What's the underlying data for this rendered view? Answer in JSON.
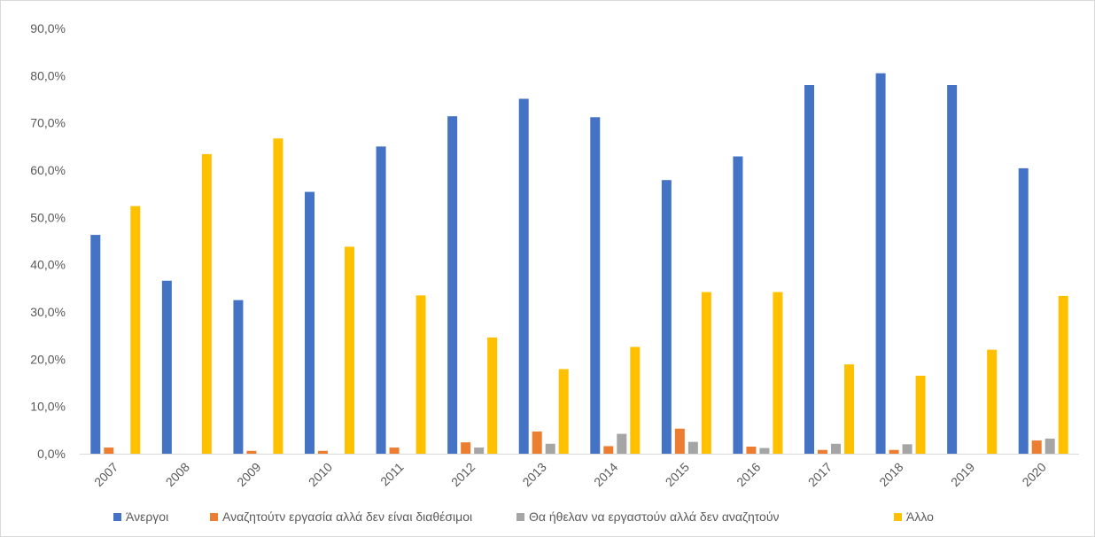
{
  "chart_data": {
    "type": "bar",
    "title": "",
    "xlabel": "",
    "ylabel": "",
    "ylim": [
      0,
      90
    ],
    "y_ticks": [
      "0,0%",
      "10,0%",
      "20,0%",
      "30,0%",
      "40,0%",
      "50,0%",
      "60,0%",
      "70,0%",
      "80,0%",
      "90,0%"
    ],
    "y_tick_values": [
      0,
      10,
      20,
      30,
      40,
      50,
      60,
      70,
      80,
      90
    ],
    "grid": false,
    "legend_position": "bottom",
    "categories": [
      "2007",
      "2008",
      "2009",
      "2010",
      "2011",
      "2012",
      "2013",
      "2014",
      "2015",
      "2016",
      "2017",
      "2018",
      "2019",
      "2020"
    ],
    "series": [
      {
        "name": "Άνεργοι",
        "color": "#4472c4",
        "values": [
          46.3,
          36.6,
          32.5,
          55.4,
          65.0,
          71.4,
          75.1,
          71.2,
          57.9,
          62.9,
          78.0,
          80.5,
          78.0,
          60.4
        ]
      },
      {
        "name": "Αναζητούτν εργασία αλλά δεν είναι διαθέσιμοι",
        "color": "#ed7d31",
        "values": [
          1.3,
          0,
          0.6,
          0.6,
          1.3,
          2.4,
          4.7,
          1.6,
          5.3,
          1.5,
          0.8,
          0.8,
          0,
          2.8
        ]
      },
      {
        "name": "Θα ήθελαν να εργαστούν αλλά δεν αναζητούν",
        "color": "#a5a5a5",
        "values": [
          0,
          0,
          0,
          0,
          0,
          1.3,
          2.1,
          4.2,
          2.5,
          1.2,
          2.1,
          2.0,
          0,
          3.2
        ]
      },
      {
        "name": "Άλλο",
        "color": "#ffc000",
        "values": [
          52.4,
          63.4,
          66.7,
          43.8,
          33.5,
          24.6,
          17.9,
          22.6,
          34.2,
          34.2,
          18.9,
          16.5,
          22.0,
          33.4
        ]
      }
    ]
  }
}
